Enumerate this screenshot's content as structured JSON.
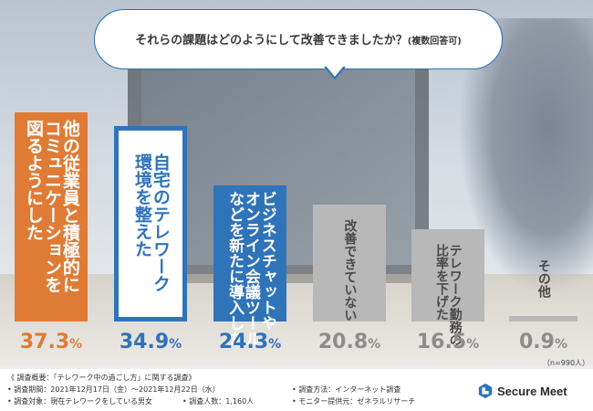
{
  "bubble": {
    "title": "それらの課題はどのようにして改善できましたか？",
    "note": "(複数回答可)"
  },
  "colors": {
    "orange": "#e07b35",
    "blue": "#2f73b9",
    "gray": "#b8b8b8",
    "value_gray": "#8c8c8c"
  },
  "chart_data": {
    "type": "bar",
    "title": "それらの課題はどのようにして改善できましたか？(複数回答可)",
    "categories": [
      "他の従業員と積極的にコミュニケーションを図るようにした",
      "自宅のテレワーク環境を整えた",
      "ビジネスチャットやオンライン会議ツールなどを新たに導入した",
      "改善できていない",
      "テレワーク勤務の比率を下げた",
      "その他"
    ],
    "values": [
      37.3,
      34.9,
      24.3,
      20.8,
      16.5,
      0.9
    ],
    "unit": "%",
    "labels": [
      [
        "他の従業員と積極的に",
        "コミュニケーションを",
        "図るようにした"
      ],
      [
        "自宅のテレワーク",
        "環境を整えた"
      ],
      [
        "ビジネスチャットや",
        "オンライン会議ツール",
        "などを新たに導入した"
      ],
      [
        "改善できていない"
      ],
      [
        "テレワーク勤務の",
        "比率を下げた"
      ],
      [
        "その他"
      ]
    ],
    "value_labels": [
      "37.3",
      "34.9",
      "24.3",
      "20.8",
      "16.5",
      "0.9"
    ],
    "ylim": [
      0,
      40
    ],
    "n_note": "（n=990人）"
  },
  "footer": {
    "line1": "《 調査概要：「テレワーク中の過ごし方」に関する調査》",
    "period": "• 調査期間：2021年12月17日（金）〜2021年12月22日（水）",
    "method": "• 調査方法：インターネット調査",
    "target": "• 調査対象：現在テレワークをしている男女",
    "count": "• 調査人数：1,160人",
    "provider": "• モニター提供元：ゼネラルリサーチ"
  },
  "logo": {
    "text": "Secure Meet",
    "icon": "secure-meet-logo-icon"
  }
}
